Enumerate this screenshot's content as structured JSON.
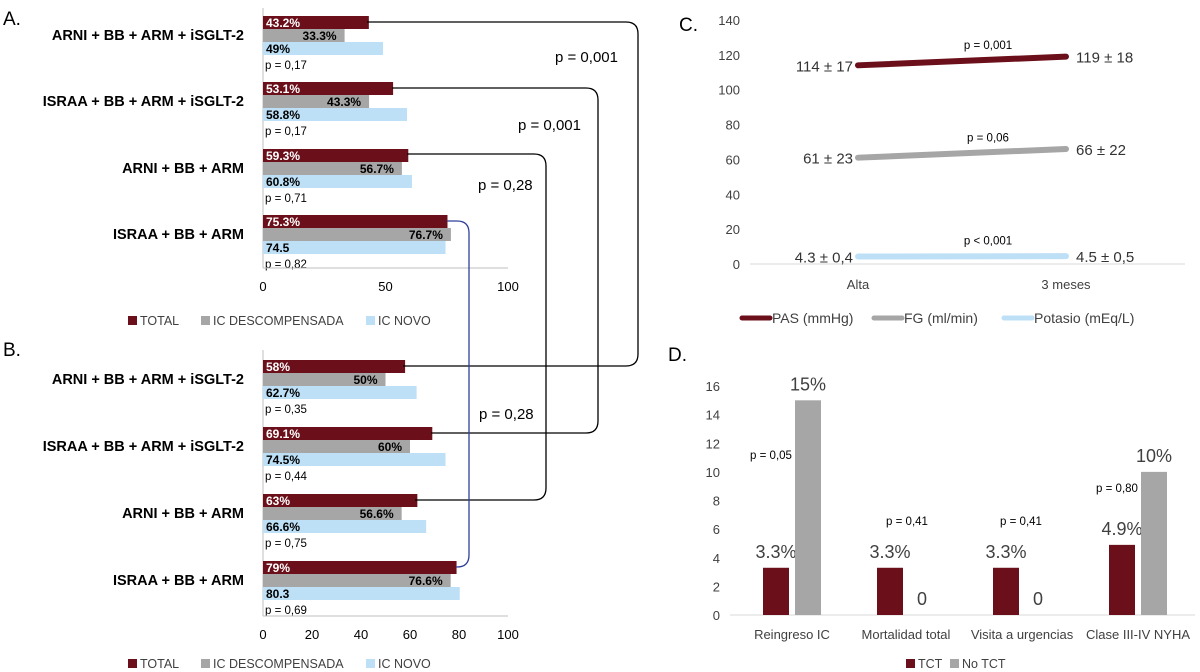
{
  "colors": {
    "total": "#6b0f1a",
    "decomp": "#a6a6a6",
    "novo": "#bde0f7",
    "pas": "#6b0f1a",
    "fg": "#a6a6a6",
    "potasio": "#bde0f7",
    "tct": "#6b0f1a",
    "no_tct": "#a6a6a6",
    "bracket": "#000000",
    "bracket_blue": "#2f3f9a"
  },
  "chart_data": [
    {
      "type": "bar",
      "orientation": "horizontal",
      "panel_label": "A.",
      "categories": [
        "ARNI + BB + ARM + iSGLT-2",
        "ISRAA + BB + ARM + iSGLT-2",
        "ARNI + BB + ARM",
        "ISRAA + BB + ARM"
      ],
      "series": [
        {
          "name": "TOTAL",
          "values": [
            43.2,
            53.1,
            59.3,
            75.3
          ],
          "labels": [
            "43.2%",
            "53.1%",
            "59.3%",
            "75.3%"
          ]
        },
        {
          "name": "IC DESCOMPENSADA",
          "values": [
            33.3,
            43.3,
            56.7,
            76.7
          ],
          "labels": [
            "33.3%",
            "43.3%",
            "56.7%",
            "76.7%"
          ]
        },
        {
          "name": "IC NOVO",
          "values": [
            49,
            58.8,
            60.8,
            74.5
          ],
          "labels": [
            "49%",
            "58.8%",
            "60.8%",
            "74.5"
          ]
        }
      ],
      "pvalues": [
        "p = 0,17",
        "p = 0,17",
        "p = 0,71",
        "p = 0,82"
      ],
      "xlim": [
        0,
        100
      ],
      "ticks": [
        0,
        50,
        100
      ]
    },
    {
      "type": "bar",
      "orientation": "horizontal",
      "panel_label": "B.",
      "categories": [
        "ARNI + BB + ARM + iSGLT-2",
        "ISRAA + BB + ARM + iSGLT-2",
        "ARNI + BB + ARM",
        "ISRAA + BB + ARM"
      ],
      "series": [
        {
          "name": "TOTAL",
          "values": [
            58,
            69.1,
            63,
            79
          ],
          "labels": [
            "58%",
            "69.1%",
            "63%",
            "79%"
          ]
        },
        {
          "name": "IC DESCOMPENSADA",
          "values": [
            50,
            60,
            56.6,
            76.6
          ],
          "labels": [
            "50%",
            "60%",
            "56.6%",
            "76.6%"
          ]
        },
        {
          "name": "IC NOVO",
          "values": [
            62.7,
            74.5,
            66.6,
            80.3
          ],
          "labels": [
            "62.7%",
            "74.5%",
            "66.6%",
            "80.3"
          ]
        }
      ],
      "pvalues": [
        "p = 0,35",
        "p = 0,44",
        "p = 0,75",
        "p = 0,69"
      ],
      "xlim": [
        0,
        100
      ],
      "ticks": [
        0,
        20,
        40,
        60,
        80,
        100
      ]
    },
    {
      "type": "line",
      "panel_label": "C.",
      "categories": [
        "Alta",
        "3 meses"
      ],
      "ylim": [
        0,
        140
      ],
      "ticks": [
        0,
        20,
        40,
        60,
        80,
        100,
        120,
        140
      ],
      "series": [
        {
          "name": "PAS (mmHg)",
          "values": [
            114,
            119
          ],
          "point_labels": [
            "114 ± 17",
            "119 ± 18"
          ],
          "pvalue": "p = 0,001"
        },
        {
          "name": "FG (ml/min)",
          "values": [
            61,
            66
          ],
          "point_labels": [
            "61 ± 23",
            "66 ± 22"
          ],
          "pvalue": "p = 0,06"
        },
        {
          "name": "Potasio (mEq/L)",
          "values": [
            4.3,
            4.5
          ],
          "point_labels": [
            "4.3 ± 0,4",
            "4.5 ± 0,5"
          ],
          "pvalue": "p < 0,001"
        }
      ]
    },
    {
      "type": "bar",
      "panel_label": "D.",
      "categories": [
        "Reingreso IC",
        "Mortalidad total",
        "Visita a urgencias",
        "Clase III-IV NYHA"
      ],
      "ylim": [
        0,
        16
      ],
      "ticks": [
        0,
        2,
        4,
        6,
        8,
        10,
        12,
        14,
        16
      ],
      "series": [
        {
          "name": "TCT",
          "values": [
            3.3,
            3.3,
            3.3,
            4.9
          ],
          "labels": [
            "3.3%",
            "3.3%",
            "3.3%",
            "4.9%"
          ]
        },
        {
          "name": "No TCT",
          "values": [
            15,
            0,
            0,
            10
          ],
          "labels": [
            "15%",
            "0",
            "0",
            "10%"
          ]
        }
      ],
      "pvalues": [
        "p = 0,05",
        "p = 0,41",
        "p = 0,41",
        "p = 0,80"
      ]
    }
  ],
  "brackets": [
    "p = 0,001",
    "p = 0,001",
    "p = 0,28",
    "p = 0,28"
  ]
}
